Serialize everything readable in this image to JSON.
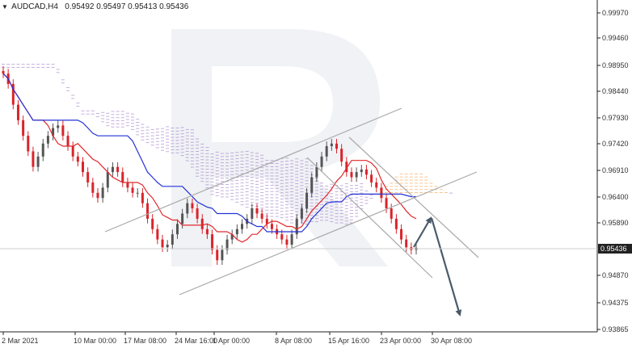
{
  "header": {
    "symbol": "AUDCAD,H4",
    "open": "0.95492",
    "high": "0.95497",
    "low": "0.95413",
    "close": "0.95436"
  },
  "colors": {
    "bull": "#555555",
    "bear": "#d9242b",
    "tenkan": "#e0282c",
    "kijun": "#2432d6",
    "cloud_a": "#f5a04a",
    "cloud_b": "#a079c8",
    "channel": "#a9a9a9",
    "arrow": "#4a5a6a",
    "axis": "#222222",
    "price_bg": "#222222"
  },
  "chart_data": {
    "type": "candlestick",
    "instrument": "AUDCAD",
    "timeframe": "H4",
    "ylim": [
      0.93865,
      0.9997
    ],
    "y_ticks": [
      "0.99970",
      "0.99460",
      "0.98950",
      "0.98440",
      "0.97930",
      "0.97420",
      "0.96910",
      "0.96400",
      "0.95890",
      "0.95436",
      "0.94870",
      "0.94375",
      "0.93865"
    ],
    "y_tick_values": [
      0.9997,
      0.9946,
      0.9895,
      0.9844,
      0.9793,
      0.9742,
      0.9691,
      0.964,
      0.9589,
      0.95436,
      0.9487,
      0.94375,
      0.93865
    ],
    "x_ticks": [
      "2 Mar 2021",
      "10 Mar 00:00",
      "17 Mar 08:00",
      "24 Mar 16:00",
      "1 Apr 00:00",
      "8 Apr 08:00",
      "15 Apr 16:00",
      "23 Apr 00:00",
      "30 Apr 08:00"
    ],
    "current_price": "0.95436",
    "indicators": [
      "Ichimoku Kinko Hyo"
    ],
    "closes": [
      0.988,
      0.986,
      0.982,
      0.979,
      0.976,
      0.973,
      0.97,
      0.972,
      0.9745,
      0.976,
      0.9775,
      0.978,
      0.976,
      0.974,
      0.972,
      0.971,
      0.969,
      0.967,
      0.965,
      0.964,
      0.966,
      0.969,
      0.97,
      0.969,
      0.967,
      0.966,
      0.965,
      0.965,
      0.963,
      0.96,
      0.958,
      0.956,
      0.9545,
      0.955,
      0.957,
      0.959,
      0.961,
      0.963,
      0.962,
      0.96,
      0.958,
      0.957,
      0.954,
      0.952,
      0.954,
      0.956,
      0.957,
      0.958,
      0.959,
      0.96,
      0.962,
      0.961,
      0.96,
      0.959,
      0.958,
      0.957,
      0.956,
      0.955,
      0.957,
      0.96,
      0.962,
      0.965,
      0.968,
      0.97,
      0.972,
      0.974,
      0.9745,
      0.9735,
      0.971,
      0.969,
      0.968,
      0.969,
      0.9695,
      0.9685,
      0.967,
      0.966,
      0.964,
      0.962,
      0.96,
      0.958,
      0.956,
      0.9545,
      0.954,
      0.9544
    ],
    "channels": [
      {
        "name": "rising-upper",
        "from": {
          "t": "2 Mar",
          "price": 0.959
        },
        "to": {
          "t": "23 Apr",
          "price": 0.978
        }
      },
      {
        "name": "rising-lower",
        "from": {
          "t": "24 Mar",
          "price": 0.951
        },
        "to": {
          "t": "30 Apr",
          "price": 0.969
        }
      },
      {
        "name": "falling-upper",
        "from": {
          "t": "15 Apr",
          "price": 0.974
        },
        "to": {
          "t": "30 Apr",
          "price": 0.9552
        }
      },
      {
        "name": "falling-lower",
        "from": {
          "t": "15 Apr",
          "price": 0.969
        },
        "to": {
          "t": "30 Apr",
          "price": 0.95
        }
      }
    ],
    "forecast": [
      {
        "from": {
          "t": "30 Apr",
          "price": 0.955
        },
        "to": {
          "t": "30 Apr",
          "price": 0.9614
        }
      },
      {
        "from": {
          "t": "30 Apr",
          "price": 0.9614
        },
        "to": {
          "t": "30 Apr",
          "price": 0.939
        }
      }
    ]
  }
}
